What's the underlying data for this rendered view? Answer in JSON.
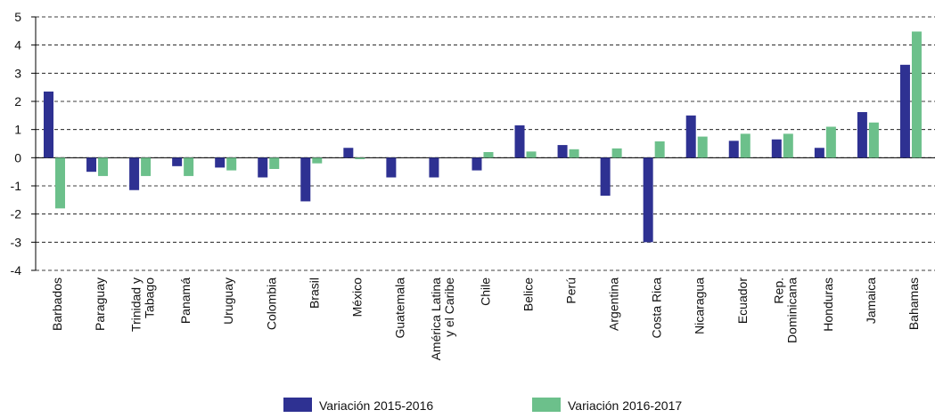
{
  "chart_data": {
    "type": "bar",
    "categories": [
      "Barbados",
      "Paraguay",
      [
        "Trinidad y",
        "Tabago"
      ],
      "Panamá",
      "Uruguay",
      "Colombia",
      "Brasil",
      "México",
      "Guatemala",
      [
        "América Latina",
        "y el Caribe"
      ],
      "Chile",
      "Belice",
      "Perú",
      "Argentina",
      "Costa Rica",
      "Nicaragua",
      "Ecuador",
      [
        "Rep.",
        "Dominicana"
      ],
      "Honduras",
      "Jamaica",
      "Bahamas"
    ],
    "series": [
      {
        "name": "Variación 2015-2016",
        "color": "#2e3192",
        "values": [
          2.35,
          -0.5,
          -1.15,
          -0.3,
          -0.35,
          -0.7,
          -1.55,
          0.35,
          -0.7,
          -0.7,
          -0.45,
          1.15,
          0.45,
          -1.35,
          -3.0,
          1.5,
          0.6,
          0.65,
          0.35,
          1.62,
          3.3
        ]
      },
      {
        "name": "Variación 2016-2017",
        "color": "#6cc08b",
        "values": [
          -1.8,
          -0.65,
          -0.65,
          -0.65,
          -0.45,
          -0.4,
          -0.2,
          -0.05,
          null,
          null,
          0.2,
          0.22,
          0.3,
          0.33,
          0.58,
          0.75,
          0.85,
          0.85,
          1.1,
          1.25,
          4.48
        ]
      }
    ],
    "ylim": [
      -4,
      5
    ],
    "yticks": [
      -4,
      -3,
      -2,
      -1,
      0,
      1,
      2,
      3,
      4,
      5
    ],
    "grid": true
  }
}
